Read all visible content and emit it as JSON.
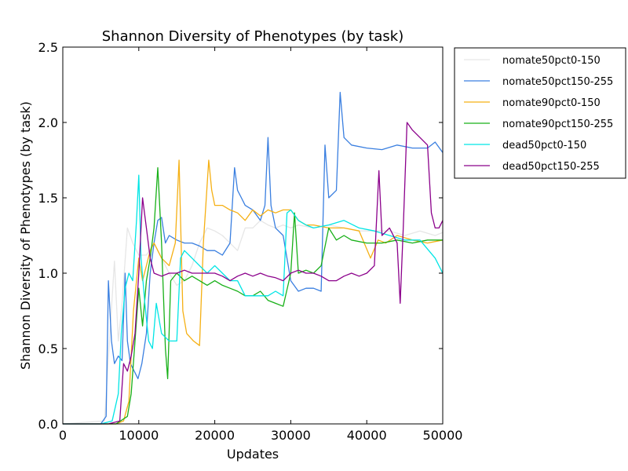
{
  "chart_data": {
    "type": "line",
    "title": "Shannon Diversity of Phenotypes (by task)",
    "xlabel": "Updates",
    "ylabel": "Shannon Diversity of Phenotypes (by task)",
    "xlim": [
      0,
      50000
    ],
    "ylim": [
      0,
      2.5
    ],
    "x_ticks": [
      0,
      10000,
      20000,
      30000,
      40000,
      50000
    ],
    "x_tick_labels": [
      "0",
      "10000",
      "20000",
      "30000",
      "40000",
      "50000"
    ],
    "y_ticks": [
      0.0,
      0.5,
      1.0,
      1.5,
      2.0,
      2.5
    ],
    "y_tick_labels": [
      "0.0",
      "0.5",
      "1.0",
      "1.5",
      "2.0",
      "2.5"
    ],
    "grid": false,
    "legend_position": "outside-right-top",
    "series": [
      {
        "name": "nomate50pct0-150",
        "color": "#e6e6e6",
        "points": [
          [
            0,
            0
          ],
          [
            5500,
            0.02
          ],
          [
            6200,
            0.6
          ],
          [
            6800,
            1.08
          ],
          [
            7300,
            0.55
          ],
          [
            7800,
            0.8
          ],
          [
            8500,
            1.3
          ],
          [
            9200,
            1.2
          ],
          [
            10000,
            1.12
          ],
          [
            11000,
            1.12
          ],
          [
            12000,
            1.2
          ],
          [
            13000,
            1.1
          ],
          [
            14000,
            1.0
          ],
          [
            15000,
            0.92
          ],
          [
            16000,
            0.95
          ],
          [
            17000,
            1.05
          ],
          [
            18000,
            1.2
          ],
          [
            19000,
            1.3
          ],
          [
            20000,
            1.28
          ],
          [
            21000,
            1.25
          ],
          [
            22000,
            1.2
          ],
          [
            23000,
            1.15
          ],
          [
            24000,
            1.3
          ],
          [
            25000,
            1.3
          ],
          [
            26000,
            1.35
          ],
          [
            27000,
            1.32
          ],
          [
            28000,
            1.3
          ],
          [
            29000,
            1.32
          ],
          [
            30000,
            1.3
          ],
          [
            31000,
            1.32
          ],
          [
            33000,
            1.3
          ],
          [
            35000,
            1.32
          ],
          [
            37000,
            1.3
          ],
          [
            39000,
            1.28
          ],
          [
            41000,
            1.28
          ],
          [
            43000,
            1.28
          ],
          [
            45000,
            1.25
          ],
          [
            47000,
            1.28
          ],
          [
            49000,
            1.25
          ],
          [
            50000,
            1.27
          ]
        ]
      },
      {
        "name": "nomate50pct150-255",
        "color": "#3a7fe0",
        "points": [
          [
            0,
            0
          ],
          [
            5000,
            0.0
          ],
          [
            5700,
            0.05
          ],
          [
            6000,
            0.95
          ],
          [
            6400,
            0.55
          ],
          [
            6800,
            0.4
          ],
          [
            7300,
            0.45
          ],
          [
            7800,
            0.42
          ],
          [
            8200,
            1.0
          ],
          [
            8500,
            0.55
          ],
          [
            8900,
            0.4
          ],
          [
            9400,
            0.35
          ],
          [
            9900,
            0.3
          ],
          [
            10400,
            0.4
          ],
          [
            11000,
            0.6
          ],
          [
            11500,
            1.0
          ],
          [
            12000,
            1.2
          ],
          [
            12500,
            1.35
          ],
          [
            13000,
            1.37
          ],
          [
            13500,
            1.2
          ],
          [
            14000,
            1.25
          ],
          [
            15000,
            1.22
          ],
          [
            16000,
            1.2
          ],
          [
            17000,
            1.2
          ],
          [
            18000,
            1.18
          ],
          [
            19000,
            1.15
          ],
          [
            20000,
            1.15
          ],
          [
            21000,
            1.12
          ],
          [
            22000,
            1.2
          ],
          [
            22600,
            1.7
          ],
          [
            23000,
            1.55
          ],
          [
            23500,
            1.5
          ],
          [
            24000,
            1.45
          ],
          [
            25000,
            1.42
          ],
          [
            26000,
            1.35
          ],
          [
            26600,
            1.45
          ],
          [
            27000,
            1.9
          ],
          [
            27400,
            1.45
          ],
          [
            28000,
            1.3
          ],
          [
            29000,
            1.25
          ],
          [
            30000,
            0.95
          ],
          [
            31000,
            0.88
          ],
          [
            32000,
            0.9
          ],
          [
            33000,
            0.9
          ],
          [
            34000,
            0.88
          ],
          [
            34500,
            1.85
          ],
          [
            35000,
            1.5
          ],
          [
            36000,
            1.55
          ],
          [
            36500,
            2.2
          ],
          [
            37000,
            1.9
          ],
          [
            38000,
            1.85
          ],
          [
            40000,
            1.83
          ],
          [
            42000,
            1.82
          ],
          [
            44000,
            1.85
          ],
          [
            46000,
            1.83
          ],
          [
            48000,
            1.83
          ],
          [
            49000,
            1.87
          ],
          [
            50000,
            1.8
          ]
        ]
      },
      {
        "name": "nomate90pct0-150",
        "color": "#f5b014",
        "points": [
          [
            0,
            0
          ],
          [
            7000,
            0.0
          ],
          [
            8000,
            0.02
          ],
          [
            8700,
            0.15
          ],
          [
            9300,
            0.75
          ],
          [
            10000,
            1.1
          ],
          [
            10500,
            0.95
          ],
          [
            11000,
            1.05
          ],
          [
            11500,
            1.15
          ],
          [
            12000,
            1.2
          ],
          [
            13000,
            1.1
          ],
          [
            14000,
            1.05
          ],
          [
            14800,
            1.2
          ],
          [
            15300,
            1.75
          ],
          [
            15800,
            0.75
          ],
          [
            16300,
            0.6
          ],
          [
            17200,
            0.55
          ],
          [
            18000,
            0.52
          ],
          [
            18500,
            1.2
          ],
          [
            19200,
            1.75
          ],
          [
            19600,
            1.55
          ],
          [
            20000,
            1.45
          ],
          [
            21000,
            1.45
          ],
          [
            22000,
            1.42
          ],
          [
            23000,
            1.4
          ],
          [
            24000,
            1.35
          ],
          [
            25000,
            1.42
          ],
          [
            26000,
            1.38
          ],
          [
            27000,
            1.42
          ],
          [
            28000,
            1.4
          ],
          [
            29000,
            1.42
          ],
          [
            30000,
            1.42
          ],
          [
            31000,
            1.35
          ],
          [
            32000,
            1.32
          ],
          [
            33000,
            1.32
          ],
          [
            35000,
            1.3
          ],
          [
            37000,
            1.3
          ],
          [
            39000,
            1.28
          ],
          [
            40500,
            1.1
          ],
          [
            41500,
            1.22
          ],
          [
            42500,
            1.2
          ],
          [
            44000,
            1.25
          ],
          [
            46000,
            1.22
          ],
          [
            48000,
            1.2
          ],
          [
            50000,
            1.22
          ]
        ]
      },
      {
        "name": "nomate90pct150-255",
        "color": "#18b018",
        "points": [
          [
            0,
            0
          ],
          [
            7000,
            0.0
          ],
          [
            8500,
            0.05
          ],
          [
            9000,
            0.2
          ],
          [
            9500,
            0.55
          ],
          [
            10000,
            0.9
          ],
          [
            10500,
            0.65
          ],
          [
            11000,
            0.95
          ],
          [
            11500,
            1.1
          ],
          [
            12000,
            1.3
          ],
          [
            12500,
            1.7
          ],
          [
            13000,
            1.2
          ],
          [
            13500,
            0.5
          ],
          [
            13800,
            0.3
          ],
          [
            14200,
            0.95
          ],
          [
            15000,
            1.0
          ],
          [
            16000,
            0.95
          ],
          [
            17000,
            0.98
          ],
          [
            18000,
            0.95
          ],
          [
            19000,
            0.92
          ],
          [
            20000,
            0.95
          ],
          [
            21000,
            0.92
          ],
          [
            22000,
            0.9
          ],
          [
            23000,
            0.88
          ],
          [
            24000,
            0.85
          ],
          [
            25000,
            0.85
          ],
          [
            26000,
            0.88
          ],
          [
            27000,
            0.82
          ],
          [
            28000,
            0.8
          ],
          [
            29000,
            0.78
          ],
          [
            30000,
            1.0
          ],
          [
            30500,
            1.4
          ],
          [
            31000,
            1.0
          ],
          [
            32000,
            1.02
          ],
          [
            33000,
            1.0
          ],
          [
            34000,
            1.05
          ],
          [
            35000,
            1.3
          ],
          [
            36000,
            1.22
          ],
          [
            37000,
            1.25
          ],
          [
            38000,
            1.22
          ],
          [
            40000,
            1.2
          ],
          [
            42000,
            1.2
          ],
          [
            44000,
            1.22
          ],
          [
            46000,
            1.2
          ],
          [
            48000,
            1.22
          ],
          [
            50000,
            1.22
          ]
        ]
      },
      {
        "name": "dead50pct0-150",
        "color": "#00e5e5",
        "points": [
          [
            0,
            0
          ],
          [
            5000,
            0.0
          ],
          [
            6500,
            0.02
          ],
          [
            7300,
            0.2
          ],
          [
            7700,
            0.6
          ],
          [
            8200,
            0.9
          ],
          [
            8700,
            1.0
          ],
          [
            9200,
            0.95
          ],
          [
            9700,
            1.35
          ],
          [
            10000,
            1.65
          ],
          [
            10300,
            1.1
          ],
          [
            10800,
            0.8
          ],
          [
            11300,
            0.55
          ],
          [
            11800,
            0.5
          ],
          [
            12300,
            0.8
          ],
          [
            13000,
            0.6
          ],
          [
            14000,
            0.55
          ],
          [
            15000,
            0.55
          ],
          [
            15500,
            1.1
          ],
          [
            16000,
            1.15
          ],
          [
            17000,
            1.1
          ],
          [
            18000,
            1.05
          ],
          [
            19000,
            1.0
          ],
          [
            20000,
            1.05
          ],
          [
            21000,
            1.0
          ],
          [
            22000,
            0.95
          ],
          [
            23000,
            0.95
          ],
          [
            24000,
            0.85
          ],
          [
            25000,
            0.85
          ],
          [
            26000,
            0.85
          ],
          [
            27000,
            0.85
          ],
          [
            28000,
            0.88
          ],
          [
            29000,
            0.85
          ],
          [
            29500,
            1.4
          ],
          [
            30000,
            1.42
          ],
          [
            31000,
            1.35
          ],
          [
            32000,
            1.32
          ],
          [
            33000,
            1.3
          ],
          [
            35000,
            1.32
          ],
          [
            37000,
            1.35
          ],
          [
            39000,
            1.3
          ],
          [
            41000,
            1.28
          ],
          [
            43000,
            1.25
          ],
          [
            45000,
            1.22
          ],
          [
            47000,
            1.22
          ],
          [
            49000,
            1.1
          ],
          [
            50000,
            1.0
          ]
        ]
      },
      {
        "name": "dead50pct150-255",
        "color": "#8b008b",
        "points": [
          [
            0,
            0
          ],
          [
            6000,
            0.0
          ],
          [
            7500,
            0.02
          ],
          [
            8000,
            0.4
          ],
          [
            8500,
            0.35
          ],
          [
            9000,
            0.45
          ],
          [
            9500,
            0.6
          ],
          [
            10000,
            1.0
          ],
          [
            10500,
            1.5
          ],
          [
            11000,
            1.3
          ],
          [
            11500,
            1.1
          ],
          [
            12000,
            1.0
          ],
          [
            13000,
            0.98
          ],
          [
            14000,
            1.0
          ],
          [
            15000,
            1.0
          ],
          [
            16000,
            1.02
          ],
          [
            17000,
            1.0
          ],
          [
            18000,
            1.0
          ],
          [
            19000,
            1.0
          ],
          [
            20000,
            1.0
          ],
          [
            21000,
            0.98
          ],
          [
            22000,
            0.95
          ],
          [
            23000,
            0.98
          ],
          [
            24000,
            1.0
          ],
          [
            25000,
            0.98
          ],
          [
            26000,
            1.0
          ],
          [
            27000,
            0.98
          ],
          [
            28000,
            0.97
          ],
          [
            29000,
            0.95
          ],
          [
            30000,
            1.0
          ],
          [
            31000,
            1.02
          ],
          [
            32000,
            1.0
          ],
          [
            33000,
            1.0
          ],
          [
            34000,
            0.98
          ],
          [
            35000,
            0.95
          ],
          [
            36000,
            0.95
          ],
          [
            37000,
            0.98
          ],
          [
            38000,
            1.0
          ],
          [
            39000,
            0.98
          ],
          [
            40000,
            1.0
          ],
          [
            41000,
            1.05
          ],
          [
            41600,
            1.68
          ],
          [
            42000,
            1.25
          ],
          [
            43000,
            1.3
          ],
          [
            44000,
            1.2
          ],
          [
            44400,
            0.8
          ],
          [
            44800,
            1.3
          ],
          [
            45300,
            2.0
          ],
          [
            46000,
            1.95
          ],
          [
            47000,
            1.9
          ],
          [
            48000,
            1.85
          ],
          [
            48500,
            1.4
          ],
          [
            49000,
            1.3
          ],
          [
            49500,
            1.3
          ],
          [
            50000,
            1.35
          ]
        ]
      }
    ]
  }
}
